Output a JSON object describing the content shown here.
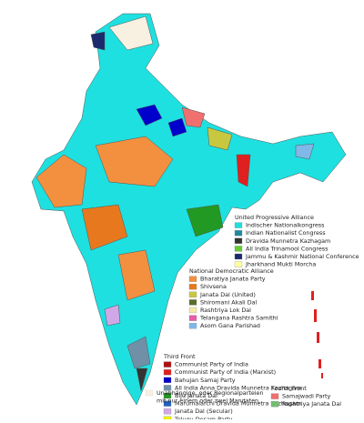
{
  "legend": {
    "groups": [
      {
        "title": "United Progressive Alliance",
        "items": [
          {
            "label": "Indischer Nationalkongress",
            "color": "#1ee0e0"
          },
          {
            "label": "Indian Nationalist Congress",
            "color": "#1f8aa0"
          },
          {
            "label": "Dravida Munnetra Kazhagam",
            "color": "#333333"
          },
          {
            "label": "All India Trinamool Congress",
            "color": "#66cc33"
          },
          {
            "label": "Jammu & Kashmir National Conference",
            "color": "#1a2a6c"
          },
          {
            "label": "Jharkhand Mukti Morcha",
            "color": "#ffffa0"
          }
        ]
      },
      {
        "title": "National Democratic Alliance",
        "items": [
          {
            "label": "Bharatiya Janata Party",
            "color": "#f39040"
          },
          {
            "label": "Shivsena",
            "color": "#e8781e"
          },
          {
            "label": "Janata Dal (United)",
            "color": "#c8c840"
          },
          {
            "label": "Shiromani Akali Dal",
            "color": "#5a6e2a"
          },
          {
            "label": "Rashtriya Lok Dal",
            "color": "#f4e8a8"
          },
          {
            "label": "Telangana Rashtra Samithi",
            "color": "#e85aa8"
          },
          {
            "label": "Asom Gana Parishad",
            "color": "#80b8e8"
          }
        ]
      },
      {
        "title": "Third Front",
        "items": [
          {
            "label": "Communist Party of India",
            "color": "#b01010"
          },
          {
            "label": "Communist Party of India (Marxist)",
            "color": "#e02020"
          },
          {
            "label": "Bahujan Samaj Party",
            "color": "#0000cc"
          },
          {
            "label": "All India Anna Dravida Munnetra Kazhagam",
            "color": "#7090a8"
          },
          {
            "label": "Biju Janata Dal",
            "color": "#229922"
          },
          {
            "label": "Marumalarchi Dravida Munnetra Kazhagam",
            "color": "#2060c0"
          },
          {
            "label": "Janata Dal (Secular)",
            "color": "#d0a8e8"
          },
          {
            "label": "Telugu Desam Party",
            "color": "#f0f000"
          }
        ]
      },
      {
        "title": "Fourth Front",
        "items": [
          {
            "label": "Samajwadi Party",
            "color": "#f07070"
          },
          {
            "label": "Rashtriya Janata Dal",
            "color": "#70c070"
          }
        ]
      }
    ],
    "other": {
      "lines": [
        "Unabhängige, oder Regionalparteien",
        "mit nur einem oder zwei Mandaten"
      ],
      "color": "#f8f0e0"
    }
  }
}
